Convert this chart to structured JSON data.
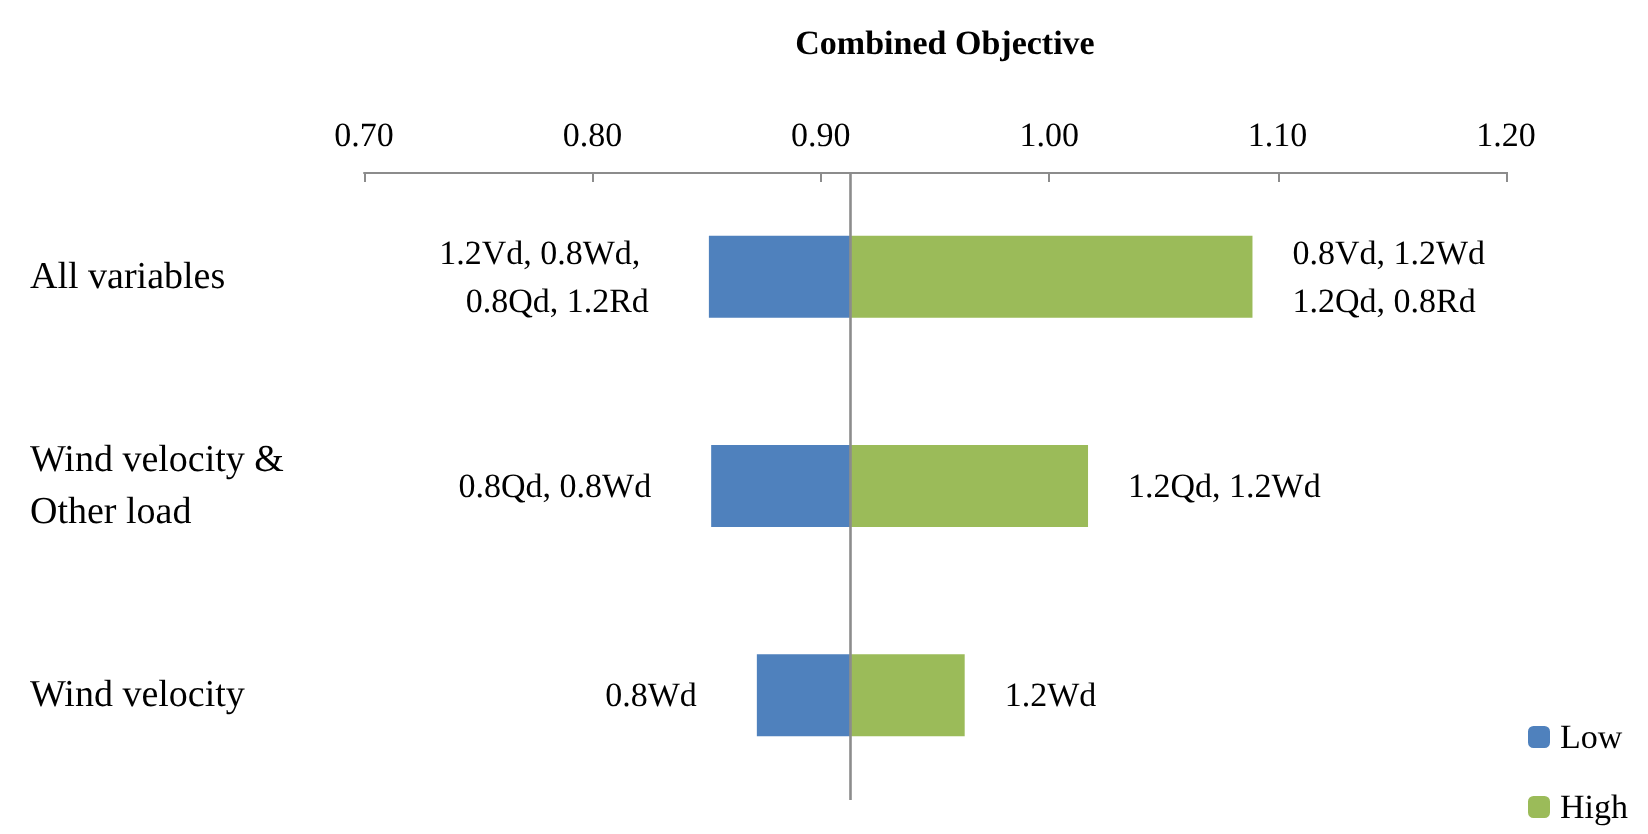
{
  "chart_data": {
    "type": "bar",
    "orientation": "horizontal",
    "title": "Combined Objective",
    "categories": [
      "All variables",
      "Wind velocity & Other load",
      "Wind velocity"
    ],
    "series": [
      {
        "name": "Low",
        "color": "#4f81bd",
        "base": [
          0.851,
          0.852,
          0.872
        ],
        "values": [
          0.062,
          0.061,
          0.041
        ]
      },
      {
        "name": "High",
        "color": "#9bbb59",
        "base": [
          0.913,
          0.913,
          0.913
        ],
        "values": [
          0.176,
          0.104,
          0.05
        ]
      }
    ],
    "annotations": [
      {
        "text": "1.2Vd, 0.8Wd, 0.8Qd, 1.2Rd",
        "x": 0.851,
        "y": "All variables"
      },
      {
        "text": "0.8Qd, 0.8Wd",
        "x": 0.852,
        "y": "Wind velocity & Other load"
      },
      {
        "text": "0.8Wd",
        "x": 0.872,
        "y": "Wind velocity"
      },
      {
        "text": "0.8Vd, 1.2Wd 1.2Qd, 0.8Rd",
        "x": 1.089,
        "y": "All variables"
      },
      {
        "text": "1.2Qd, 1.2Wd",
        "x": 1.017,
        "y": "Wind velocity & Other load"
      },
      {
        "text": "1.2Wd",
        "x": 0.963,
        "y": "Wind velocity"
      }
    ],
    "ref_lines": [
      {
        "axis": "x",
        "value": 0.913,
        "color": "#8c8c8c"
      }
    ],
    "xlim": [
      0.7,
      1.2
    ],
    "xticks": [
      {
        "value": 0.7,
        "label": "0.70"
      },
      {
        "value": 0.8,
        "label": "0.80"
      },
      {
        "value": 0.9,
        "label": "0.90"
      },
      {
        "value": 1.0,
        "label": "1.00"
      },
      {
        "value": 1.1,
        "label": "1.10"
      },
      {
        "value": 1.2,
        "label": "1.20"
      }
    ],
    "grid": false,
    "legend": "bottom right"
  }
}
